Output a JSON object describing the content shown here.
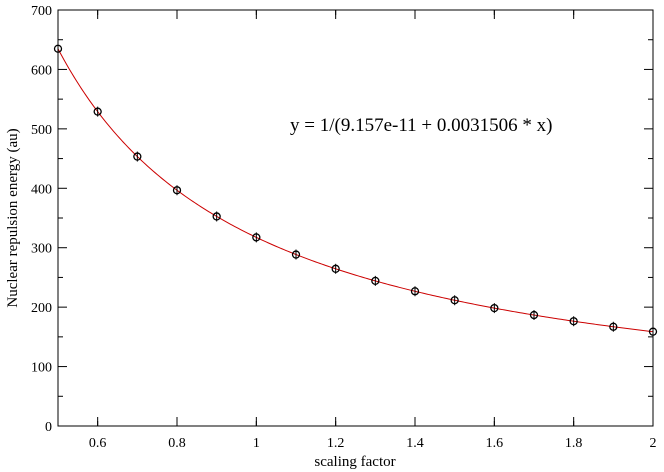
{
  "chart_data": {
    "type": "scatter",
    "title": "",
    "xlabel": "scaling factor",
    "ylabel": "Nuclear repulsion energy (au)",
    "xlim": [
      0.5,
      2
    ],
    "ylim": [
      0,
      700
    ],
    "x_ticks": [
      0.6,
      0.8,
      1,
      1.2,
      1.4,
      1.6,
      1.8,
      2
    ],
    "x_tick_labels": [
      "0.6",
      "0.8",
      "1",
      "1.2",
      "1.4",
      "1.6",
      "1.8",
      "2"
    ],
    "y_ticks": [
      0,
      100,
      200,
      300,
      400,
      500,
      600,
      700
    ],
    "y_tick_labels": [
      "0",
      "100",
      "200",
      "300",
      "400",
      "500",
      "600",
      "700"
    ],
    "grid": false,
    "series": [
      {
        "marker": "circle",
        "color": "#000000",
        "x": [
          0.5,
          0.6,
          0.7,
          0.8,
          0.9,
          1.0,
          1.1,
          1.2,
          1.3,
          1.4,
          1.5,
          1.6,
          1.7,
          1.8,
          1.9,
          2.0
        ],
        "y": [
          634.8,
          529.0,
          453.4,
          396.7,
          352.6,
          317.4,
          288.5,
          264.5,
          244.2,
          226.7,
          211.6,
          198.4,
          186.7,
          176.3,
          167.0,
          158.7
        ]
      }
    ],
    "fit": {
      "color": "#cc0000",
      "a": 9.157e-11,
      "b": 0.0031506
    },
    "annotation": "y = 1/(9.157e-11 + 0.0031506 * x)"
  }
}
